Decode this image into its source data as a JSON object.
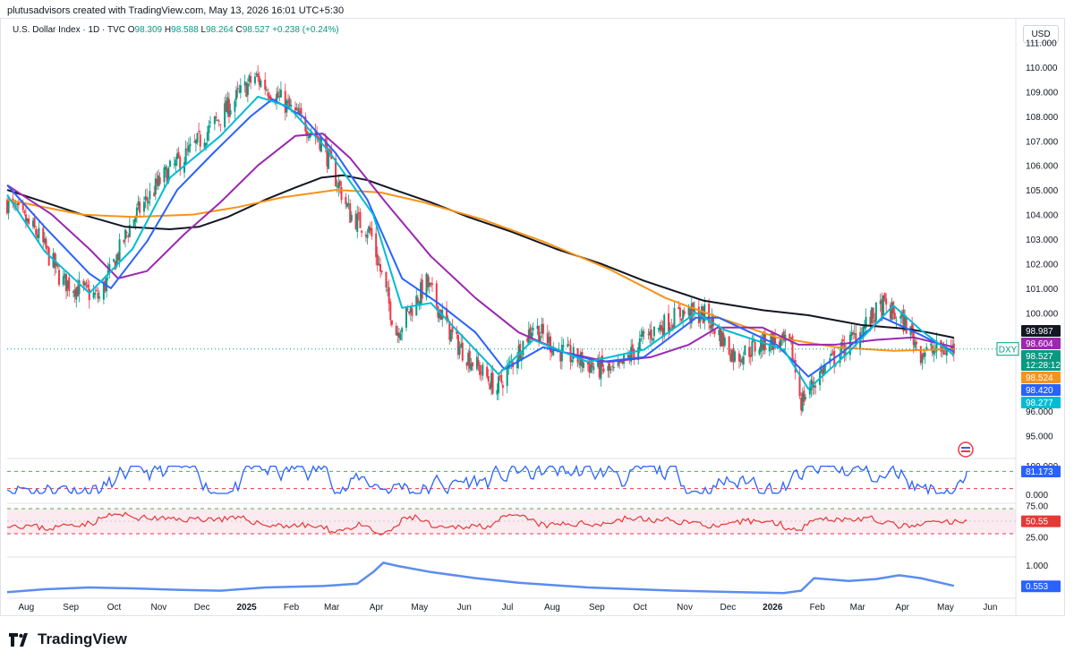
{
  "header": {
    "attribution": "plutusadvisors created with TradingView.com, May 13, 2026 16:01 UTC+5:30",
    "symbol": "U.S. Dollar Index · 1D · TVC",
    "ohlc": {
      "o_label": "O",
      "o": "98.309",
      "h_label": "H",
      "h": "98.588",
      "l_label": "L",
      "l": "98.264",
      "c_label": "C",
      "c": "98.527",
      "change": "+0.238 (+0.24%)"
    },
    "currency": "USD"
  },
  "footer": {
    "brand": "TradingView"
  },
  "colors": {
    "up": "#089981",
    "down": "#f23645",
    "ma_black": "#131722",
    "ma_orange": "#f7931a",
    "ma_purple": "#9c27b0",
    "ma_blue": "#2962ff",
    "ma_teal": "#00bcd4",
    "osc_blue": "#2962ff",
    "rsi_red": "#e53935",
    "green_dash": "#4caf50",
    "atr": "#5b8def"
  },
  "chart_data": {
    "type": "candlestick",
    "price_axis": {
      "ticks": [
        "111.000",
        "110.000",
        "109.000",
        "108.000",
        "107.000",
        "106.000",
        "105.000",
        "104.000",
        "103.000",
        "102.000",
        "101.000",
        "100.000",
        "96.000",
        "95.000"
      ],
      "range": [
        95,
        111
      ]
    },
    "x_axis": {
      "labels": [
        "Aug",
        "Sep",
        "Oct",
        "Nov",
        "Dec",
        "2025",
        "Feb",
        "Mar",
        "Apr",
        "May",
        "Jun",
        "Jul",
        "Aug",
        "Sep",
        "Oct",
        "Nov",
        "Dec",
        "2026",
        "Feb",
        "Mar",
        "Apr",
        "May",
        "Jun"
      ]
    },
    "price_anchors": {
      "dates": [
        "2024-07-25",
        "2024-08-15",
        "2024-09-01",
        "2024-09-27",
        "2024-10-20",
        "2024-11-10",
        "2024-12-01",
        "2024-12-20",
        "2025-01-13",
        "2025-02-03",
        "2025-02-28",
        "2025-03-20",
        "2025-04-03",
        "2025-04-21",
        "2025-05-12",
        "2025-06-01",
        "2025-06-30",
        "2025-07-25",
        "2025-08-10",
        "2025-09-01",
        "2025-09-20",
        "2025-10-10",
        "2025-11-05",
        "2025-11-22",
        "2025-12-12",
        "2026-01-05",
        "2026-01-20",
        "2026-01-27",
        "2026-02-10",
        "2026-03-05",
        "2026-03-25",
        "2026-04-10",
        "2026-04-20",
        "2026-05-13"
      ],
      "close": [
        104.5,
        103.2,
        101.3,
        100.6,
        103.8,
        105.5,
        106.7,
        108.0,
        109.6,
        108.5,
        107.0,
        104.0,
        103.3,
        99.2,
        101.2,
        98.8,
        96.9,
        99.5,
        98.5,
        97.9,
        97.5,
        99.0,
        100.0,
        99.9,
        98.2,
        98.9,
        98.6,
        96.4,
        97.6,
        99.0,
        100.3,
        99.5,
        98.4,
        98.527
      ]
    },
    "moving_averages": [
      {
        "color": "#131722",
        "anchors_close": [
          105.0,
          104.0,
          103.5,
          103.4,
          103.5,
          103.9,
          104.6,
          105.1,
          105.5,
          105.6,
          105.4,
          105.0,
          104.5,
          103.9,
          103.3,
          102.6,
          102.0,
          101.3,
          100.5,
          100.1,
          99.9,
          99.5,
          99.35,
          99.2,
          98.987
        ],
        "dates": [
          "2024-07-25",
          "2024-09-15",
          "2024-10-15",
          "2024-11-15",
          "2024-12-05",
          "2024-12-25",
          "2025-01-20",
          "2025-02-10",
          "2025-02-28",
          "2025-03-15",
          "2025-04-01",
          "2025-04-20",
          "2025-05-15",
          "2025-06-10",
          "2025-07-10",
          "2025-08-10",
          "2025-09-10",
          "2025-10-10",
          "2025-11-20",
          "2026-01-01",
          "2026-02-01",
          "2026-03-10",
          "2026-04-10",
          "2026-04-25",
          "2026-05-13"
        ]
      },
      {
        "color": "#f7931a",
        "anchors_close": [
          104.6,
          104.0,
          103.9,
          104.0,
          104.3,
          104.7,
          105.0,
          104.9,
          104.5,
          103.8,
          102.9,
          101.8,
          100.6,
          99.8,
          99.0,
          98.6,
          98.45,
          98.524
        ],
        "dates": [
          "2024-07-25",
          "2024-09-15",
          "2024-10-20",
          "2024-12-01",
          "2025-01-01",
          "2025-02-01",
          "2025-03-10",
          "2025-04-10",
          "2025-05-10",
          "2025-06-20",
          "2025-08-01",
          "2025-09-15",
          "2025-10-25",
          "2025-12-01",
          "2026-01-10",
          "2026-02-20",
          "2026-04-01",
          "2026-05-13"
        ]
      },
      {
        "color": "#9c27b0",
        "anchors_close": [
          105.2,
          104.0,
          102.6,
          101.4,
          101.7,
          103.2,
          104.5,
          106.0,
          107.2,
          107.3,
          106.3,
          104.4,
          102.3,
          100.6,
          99.2,
          98.4,
          98.0,
          98.2,
          98.7,
          99.4,
          99.4,
          98.7,
          98.7,
          98.9,
          99.0,
          98.604
        ],
        "dates": [
          "2024-07-25",
          "2024-08-25",
          "2024-09-20",
          "2024-10-10",
          "2024-10-30",
          "2024-11-25",
          "2024-12-20",
          "2025-01-15",
          "2025-02-10",
          "2025-03-01",
          "2025-03-20",
          "2025-04-15",
          "2025-05-15",
          "2025-06-15",
          "2025-07-15",
          "2025-08-15",
          "2025-09-15",
          "2025-10-15",
          "2025-11-10",
          "2025-11-30",
          "2025-12-31",
          "2026-01-25",
          "2026-02-20",
          "2026-03-20",
          "2026-04-15",
          "2026-05-13"
        ]
      },
      {
        "color": "#2962ff",
        "anchors_close": [
          105.2,
          103.5,
          101.6,
          101.0,
          102.9,
          105.0,
          106.5,
          108.0,
          108.7,
          108.0,
          106.5,
          104.6,
          101.4,
          100.4,
          99.2,
          97.7,
          98.6,
          98.0,
          98.2,
          99.8,
          99.8,
          98.7,
          97.4,
          98.4,
          99.8,
          99.1,
          98.42
        ],
        "dates": [
          "2024-07-25",
          "2024-08-20",
          "2024-09-20",
          "2024-10-05",
          "2024-10-30",
          "2024-11-20",
          "2024-12-15",
          "2025-01-10",
          "2025-01-25",
          "2025-02-15",
          "2025-03-10",
          "2025-04-01",
          "2025-04-25",
          "2025-05-20",
          "2025-06-15",
          "2025-07-05",
          "2025-08-01",
          "2025-09-10",
          "2025-10-10",
          "2025-11-15",
          "2025-12-01",
          "2026-01-10",
          "2026-02-01",
          "2026-02-25",
          "2026-03-25",
          "2026-04-20",
          "2026-05-13"
        ]
      },
      {
        "color": "#00bcd4",
        "anchors_close": [
          104.8,
          102.5,
          100.8,
          102.6,
          105.5,
          107.2,
          108.8,
          108.4,
          106.6,
          104.0,
          100.2,
          100.4,
          97.5,
          98.9,
          98.0,
          98.5,
          100.0,
          99.3,
          98.5,
          96.9,
          98.4,
          100.3,
          99.3,
          98.277
        ],
        "dates": [
          "2024-07-25",
          "2024-08-20",
          "2024-09-20",
          "2024-10-20",
          "2024-11-15",
          "2024-12-20",
          "2025-01-15",
          "2025-02-05",
          "2025-03-05",
          "2025-04-05",
          "2025-04-25",
          "2025-05-15",
          "2025-07-01",
          "2025-07-25",
          "2025-09-01",
          "2025-10-10",
          "2025-11-15",
          "2025-12-05",
          "2026-01-15",
          "2026-02-01",
          "2026-03-01",
          "2026-04-01",
          "2026-04-20",
          "2026-05-13"
        ]
      }
    ],
    "price_badges": [
      {
        "value": "98.987",
        "color": "#131722",
        "text_color": "#ffffff"
      },
      {
        "value": "98.604",
        "color": "#9c27b0",
        "text_color": "#ffffff"
      },
      {
        "value": "98.527",
        "color": "#089981",
        "text_color": "#ffffff"
      },
      {
        "value": "12:28:12",
        "color": "#089981",
        "text_color": "#ffffff"
      },
      {
        "value": "98.524",
        "color": "#f7931a",
        "text_color": "#ffffff"
      },
      {
        "value": "98.420",
        "color": "#2962ff",
        "text_color": "#ffffff"
      },
      {
        "value": "98.277",
        "color": "#00bcd4",
        "text_color": "#ffffff"
      }
    ],
    "symbol_tag": "DXY",
    "indicators": [
      {
        "name": "",
        "color": "#2962ff",
        "ticks": [
          "100.000",
          "0.000"
        ],
        "last_value": "81.173",
        "levels": [
          80,
          20
        ]
      },
      {
        "name": "",
        "color": "#e53935",
        "ticks": [
          "75.00",
          "25.00"
        ],
        "last_value": "50.55",
        "levels": [
          70,
          30
        ]
      },
      {
        "name": "",
        "color": "#5b8def",
        "ticks": [
          "1.000"
        ],
        "last_value": "0.553",
        "anchors": {
          "dates": [
            "2024-07-25",
            "2024-08-20",
            "2024-09-20",
            "2024-10-20",
            "2024-11-20",
            "2024-12-20",
            "2025-01-20",
            "2025-03-01",
            "2025-03-25",
            "2025-04-05",
            "2025-04-12",
            "2025-04-22",
            "2025-05-15",
            "2025-06-15",
            "2025-07-15",
            "2025-09-01",
            "2025-11-01",
            "2025-12-15",
            "2026-01-15",
            "2026-01-27",
            "2026-02-05",
            "2026-03-01",
            "2026-03-20",
            "2026-04-05",
            "2026-04-20",
            "2026-05-13"
          ],
          "values": [
            0.42,
            0.48,
            0.52,
            0.5,
            0.47,
            0.45,
            0.52,
            0.55,
            0.6,
            0.85,
            1.05,
            0.98,
            0.85,
            0.72,
            0.62,
            0.52,
            0.45,
            0.42,
            0.4,
            0.45,
            0.72,
            0.66,
            0.7,
            0.78,
            0.72,
            0.553
          ]
        }
      }
    ]
  }
}
